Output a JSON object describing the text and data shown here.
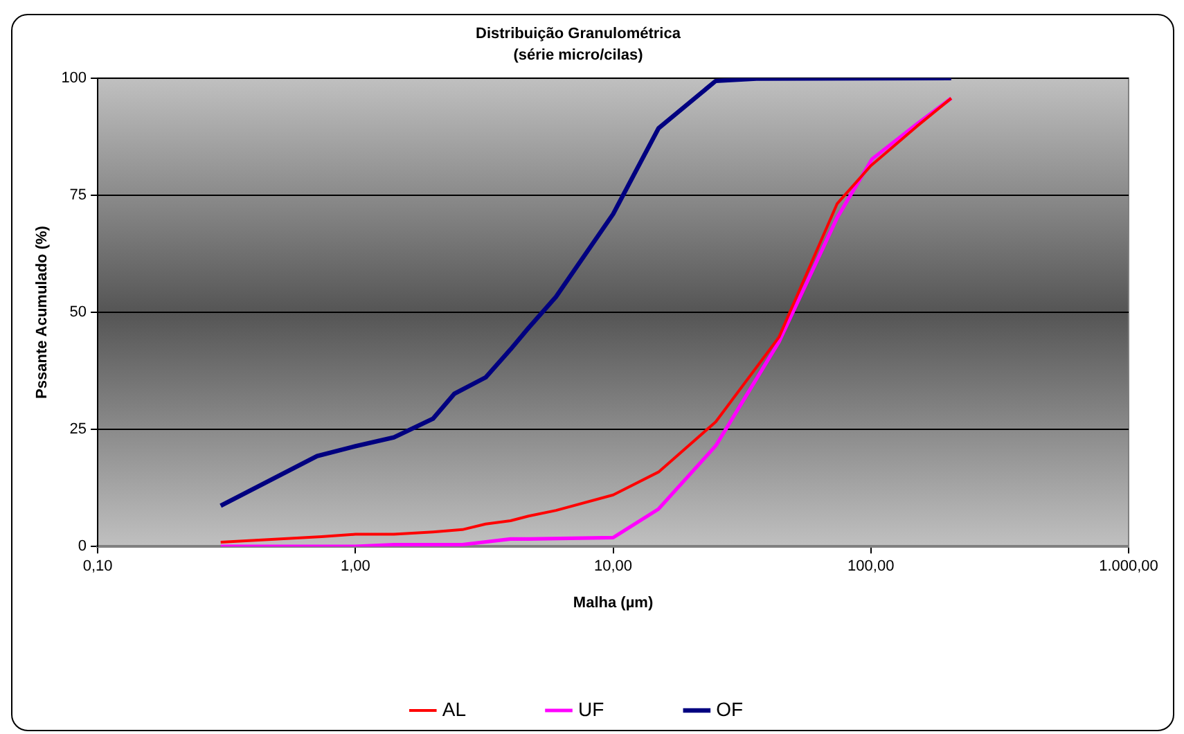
{
  "chart_data": {
    "type": "line",
    "title": "Distribuição Granulométrica",
    "subtitle": "(série micro/cilas)",
    "xlabel": "Malha (µm)",
    "ylabel": "Pssante Acumulado (%)",
    "log": "x",
    "xlim": [
      0.1,
      1000
    ],
    "xticks": [
      {
        "value": 0.1,
        "label": "0,10"
      },
      {
        "value": 1,
        "label": "1,00"
      },
      {
        "value": 10,
        "label": "10,00"
      },
      {
        "value": 100,
        "label": "100,00"
      },
      {
        "value": 1000,
        "label": "1.000,00"
      }
    ],
    "ylim": [
      0,
      100
    ],
    "yticks": [
      0,
      25,
      50,
      75,
      100
    ],
    "grid": "y",
    "legend": "bottom",
    "marker": "none",
    "line_style": "solid",
    "series": [
      {
        "name": "AL",
        "color": "#ff0000",
        "x": [
          0.3,
          0.74,
          1.0,
          1.41,
          2.0,
          2.6,
          3.2,
          4.0,
          4.7,
          6.0,
          10,
          15,
          25,
          44,
          74,
          100,
          150,
          205
        ],
        "values": [
          0.9,
          2.1,
          2.6,
          2.6,
          3.1,
          3.6,
          4.8,
          5.5,
          6.5,
          7.7,
          11,
          15.9,
          26.6,
          44.7,
          73.2,
          81.3,
          89.6,
          95.7
        ]
      },
      {
        "name": "UF",
        "color": "#ff00ff",
        "x": [
          0.3,
          1.0,
          1.41,
          2.6,
          4.0,
          4.7,
          10,
          15,
          25,
          44,
          74,
          101,
          150,
          205
        ],
        "values": [
          0,
          0,
          0.4,
          0.4,
          1.6,
          1.6,
          1.9,
          8,
          21.5,
          43.7,
          70.2,
          82.7,
          90.1,
          95.7
        ]
      },
      {
        "name": "OF",
        "color": "#000080",
        "x": [
          0.3,
          0.71,
          1.0,
          1.41,
          2.0,
          2.42,
          3.2,
          4.0,
          4.7,
          6.0,
          10,
          15,
          25,
          36,
          205
        ],
        "values": [
          8.7,
          19.3,
          21.4,
          23.3,
          27.3,
          32.6,
          36.1,
          42.1,
          46.7,
          53.3,
          71,
          89.3,
          99.4,
          99.9,
          100
        ]
      }
    ]
  }
}
